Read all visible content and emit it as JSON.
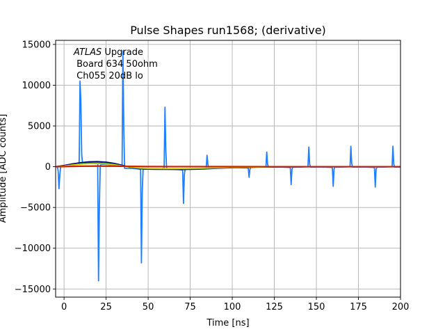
{
  "chart_data": {
    "type": "line",
    "title": "Pulse Shapes run1568; (derivative)",
    "xlabel": "Time [ns]",
    "ylabel": "Amplitude [ADC counts]",
    "xlim": [
      -5,
      200
    ],
    "ylim": [
      -16000,
      15500
    ],
    "grid": true,
    "x_ticks": [
      0,
      25,
      50,
      75,
      100,
      125,
      150,
      175,
      200
    ],
    "y_ticks": [
      -15000,
      -10000,
      -5000,
      0,
      5000,
      10000,
      15000
    ],
    "x_tick_labels": [
      "0",
      "25",
      "50",
      "75",
      "100",
      "125",
      "150",
      "175",
      "200"
    ],
    "y_tick_labels": [
      "−15000",
      "−10000",
      "−5000",
      "0",
      "5000",
      "10000",
      "15000"
    ],
    "annotation": {
      "experiment": "ATLAS",
      "line1_suffix": " Upgrade",
      "line2": " Board 634 50ohm",
      "line3": " Ch055 20dB lo"
    },
    "series": [
      {
        "name": "derivative (blue)",
        "color": "#1f7fff",
        "x": [
          -5,
          -4.5,
          -4,
          -3.5,
          -3,
          -2.5,
          -2,
          -1,
          0,
          5,
          9,
          9.5,
          10,
          10.5,
          11,
          15,
          20,
          20.5,
          21,
          21.5,
          22,
          25,
          30,
          34.5,
          35,
          35.5,
          36,
          40,
          45.5,
          46,
          46.5,
          47,
          50,
          55,
          59.5,
          60,
          60.5,
          61,
          65,
          70.5,
          71,
          71.5,
          72,
          80,
          84.5,
          85,
          85.5,
          86,
          90,
          95,
          100,
          109.5,
          110,
          110.5,
          111,
          115,
          120,
          120.5,
          121,
          121.5,
          125,
          130,
          134.5,
          135,
          135.5,
          136,
          140,
          145,
          145.5,
          146,
          146.5,
          150,
          155,
          159.5,
          160,
          160.5,
          161,
          165,
          170,
          170.5,
          171,
          171.5,
          175,
          180,
          184.5,
          185,
          185.5,
          186,
          190,
          195,
          195.5,
          196,
          196.5,
          200
        ],
        "y": [
          0,
          0,
          0,
          -500,
          -2700,
          -1000,
          0,
          0,
          100,
          200,
          300,
          10500,
          8000,
          1500,
          400,
          500,
          400,
          -14000,
          -5000,
          0,
          300,
          300,
          200,
          100,
          14200,
          5000,
          -200,
          -200,
          -300,
          -11800,
          -3000,
          -300,
          -300,
          -300,
          -200,
          7300,
          2000,
          -300,
          -300,
          -400,
          -4500,
          -1000,
          -300,
          -200,
          -200,
          1400,
          300,
          -200,
          -150,
          -100,
          -100,
          -150,
          -1300,
          -300,
          -100,
          -50,
          -50,
          1800,
          300,
          -50,
          -50,
          -50,
          -100,
          -2200,
          -300,
          -50,
          -50,
          0,
          2400,
          300,
          -50,
          -50,
          -50,
          -100,
          -2400,
          -300,
          -50,
          -50,
          0,
          2500,
          400,
          -50,
          -50,
          -50,
          -100,
          -2500,
          -300,
          -50,
          -50,
          0,
          2500,
          300,
          -50,
          -50
        ]
      },
      {
        "name": "pulse (dark blue)",
        "color": "#000080",
        "x": [
          -5,
          0,
          5,
          10,
          15,
          20,
          25,
          30,
          35,
          40,
          45,
          50,
          55,
          60,
          65,
          70,
          75,
          80,
          85,
          90,
          95,
          100,
          110,
          125,
          150,
          175,
          200
        ],
        "y": [
          0,
          150,
          350,
          500,
          600,
          620,
          560,
          400,
          150,
          -100,
          -250,
          -300,
          -320,
          -320,
          -330,
          -330,
          -320,
          -300,
          -260,
          -210,
          -160,
          -120,
          -70,
          -20,
          0,
          0,
          0
        ]
      },
      {
        "name": "pulse (green)",
        "color": "#2e8b2e",
        "x": [
          -5,
          0,
          5,
          10,
          15,
          20,
          25,
          30,
          35,
          40,
          45,
          50,
          60,
          70,
          80,
          90,
          100,
          125,
          150,
          200
        ],
        "y": [
          0,
          100,
          250,
          380,
          450,
          470,
          420,
          300,
          100,
          -80,
          -200,
          -250,
          -270,
          -270,
          -240,
          -170,
          -100,
          -20,
          0,
          0
        ]
      },
      {
        "name": "pulse (yellow)",
        "color": "#d8d800",
        "x": [
          -5,
          0,
          5,
          10,
          15,
          20,
          25,
          30,
          35,
          40,
          45,
          50,
          60,
          70,
          80,
          90,
          100,
          125,
          150,
          200
        ],
        "y": [
          0,
          80,
          200,
          300,
          360,
          370,
          330,
          230,
          80,
          -60,
          -160,
          -200,
          -220,
          -220,
          -190,
          -140,
          -80,
          -15,
          0,
          0
        ]
      },
      {
        "name": "baseline (red)",
        "color": "#cc2200",
        "x": [
          -5,
          0,
          10,
          20,
          30,
          40,
          50,
          75,
          100,
          125,
          150,
          175,
          200
        ],
        "y": [
          0,
          20,
          60,
          80,
          70,
          40,
          20,
          10,
          5,
          0,
          0,
          0,
          0
        ]
      }
    ]
  }
}
